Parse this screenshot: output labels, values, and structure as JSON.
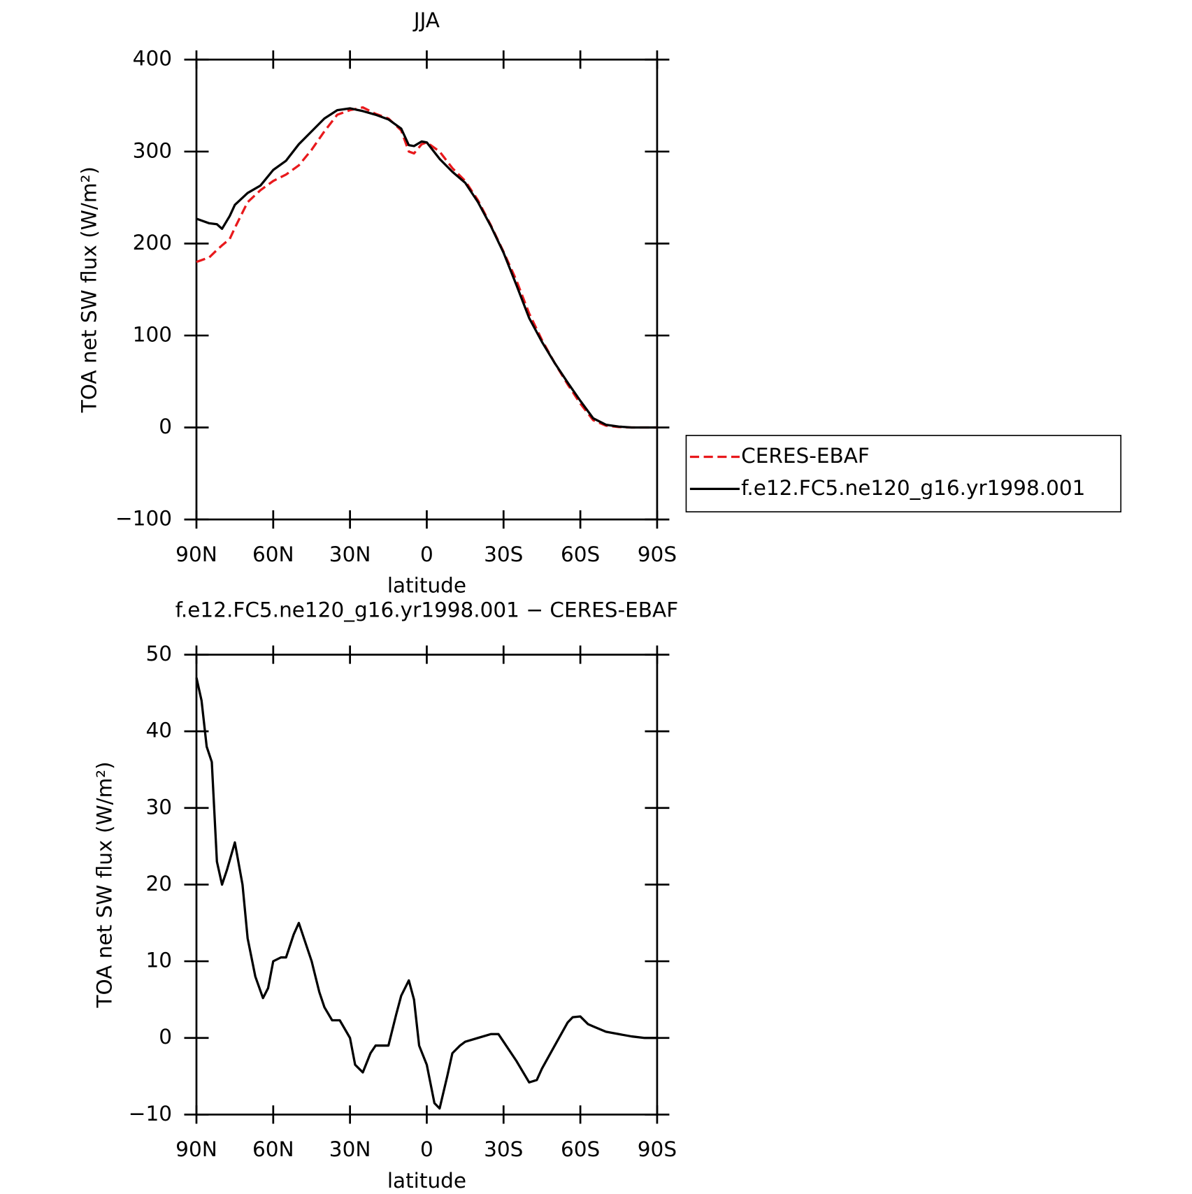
{
  "chart_data": [
    {
      "type": "line",
      "title": "JJA",
      "x_label": "latitude",
      "y_label": "TOA net SW flux (W/m²)",
      "x": [
        90,
        85,
        82,
        80,
        77,
        75,
        70,
        65,
        60,
        55,
        50,
        45,
        40,
        35,
        30,
        25,
        20,
        15,
        10,
        7,
        5,
        2,
        0,
        -5,
        -10,
        -15,
        -20,
        -25,
        -30,
        -35,
        -40,
        -45,
        -50,
        -55,
        -60,
        -65,
        -70,
        -75,
        -80,
        -85,
        -90
      ],
      "series": [
        {
          "name": "CERES-EBAF",
          "color": "#e8191c",
          "linestyle": "dashed",
          "values": [
            180,
            185,
            193,
            198,
            205,
            217,
            245,
            258,
            268,
            275,
            285,
            302,
            322,
            340,
            345,
            348,
            341,
            336,
            323,
            300,
            298,
            308,
            310,
            300,
            282,
            268,
            247,
            220,
            191,
            160,
            124,
            95,
            70,
            47,
            26,
            8,
            2,
            0.5,
            0,
            0,
            0
          ]
        },
        {
          "name": "f.e12.FC5.ne120_g16.yr1998.001",
          "color": "#000000",
          "linestyle": "solid",
          "values": [
            227,
            222,
            221,
            216,
            230,
            242,
            255,
            263,
            280,
            290,
            308,
            322,
            336,
            345,
            347,
            344,
            340,
            335,
            325,
            307,
            306,
            311,
            310,
            292,
            278,
            266,
            245,
            219,
            190,
            155,
            119,
            93,
            70,
            49,
            29,
            10,
            3,
            1,
            0,
            0,
            0
          ]
        }
      ],
      "xlim": [
        90,
        -90
      ],
      "xticks": [
        {
          "value": 90,
          "label": "90N"
        },
        {
          "value": 60,
          "label": "60N"
        },
        {
          "value": 30,
          "label": "30N"
        },
        0,
        {
          "value": -30,
          "label": "30S"
        },
        {
          "value": -60,
          "label": "60S"
        },
        {
          "value": -90,
          "label": "90S"
        }
      ],
      "ylim": [
        -100,
        400
      ],
      "yticks": [
        {
          "value": -100,
          "label": "−100"
        },
        0,
        100,
        200,
        300,
        400
      ],
      "legend": "right"
    },
    {
      "type": "line",
      "title": "f.e12.FC5.ne120_g16.yr1998.001 − CERES-EBAF",
      "x_label": "latitude",
      "y_label": "TOA net SW flux (W/m²)",
      "x": [
        90,
        88,
        86,
        84,
        82,
        80,
        78,
        75,
        72,
        70,
        67,
        64,
        62,
        60,
        57,
        55,
        52,
        50,
        48,
        45,
        42,
        40,
        37,
        34,
        30,
        28,
        25,
        22,
        20,
        17,
        15,
        12,
        10,
        7,
        5,
        3,
        0,
        -3,
        -5,
        -8,
        -10,
        -13,
        -15,
        -20,
        -25,
        -28,
        -30,
        -35,
        -40,
        -43,
        -45,
        -50,
        -55,
        -57,
        -60,
        -63,
        -65,
        -70,
        -75,
        -80,
        -85,
        -90
      ],
      "series": [
        {
          "color": "#000000",
          "linestyle": "solid",
          "values": [
            47,
            44,
            38,
            36,
            23,
            20,
            22,
            25.5,
            20,
            13,
            8,
            5.2,
            6.5,
            10,
            10.5,
            10.5,
            13.5,
            15,
            13,
            10,
            6,
            4,
            2.3,
            2.3,
            0,
            -3.5,
            -4.5,
            -2,
            -1,
            -1,
            -1,
            3,
            5.5,
            7.5,
            5,
            -1,
            -3.5,
            -8.5,
            -9.2,
            -5,
            -2,
            -1,
            -0.5,
            0,
            0.5,
            0.5,
            -0.5,
            -3,
            -5.8,
            -5.5,
            -4,
            -1,
            2,
            2.7,
            2.8,
            1.8,
            1.5,
            0.8,
            0.5,
            0.2,
            0,
            0
          ]
        }
      ],
      "xlim": [
        90,
        -90
      ],
      "xticks": [
        {
          "value": 90,
          "label": "90N"
        },
        {
          "value": 60,
          "label": "60N"
        },
        {
          "value": 30,
          "label": "30N"
        },
        0,
        {
          "value": -30,
          "label": "30S"
        },
        {
          "value": -60,
          "label": "60S"
        },
        {
          "value": -90,
          "label": "90S"
        }
      ],
      "ylim": [
        -10,
        50
      ],
      "yticks": [
        {
          "value": -10,
          "label": "−10"
        },
        0,
        10,
        20,
        30,
        40,
        50
      ]
    }
  ]
}
